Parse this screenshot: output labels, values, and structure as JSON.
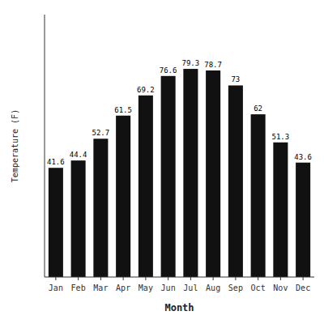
{
  "chart_data": {
    "type": "bar",
    "categories": [
      "Jan",
      "Feb",
      "Mar",
      "Apr",
      "May",
      "Jun",
      "Jul",
      "Aug",
      "Sep",
      "Oct",
      "Nov",
      "Dec"
    ],
    "values": [
      41.6,
      44.4,
      52.7,
      61.5,
      69.2,
      76.6,
      79.3,
      78.7,
      73.0,
      62.0,
      51.3,
      43.6
    ],
    "color": "#111111",
    "xlabel": "Month",
    "ylabel": "Temperature (F)",
    "ylim": [
      0,
      100
    ],
    "yticks": [],
    "data_labels": true,
    "tick_labels": "x"
  }
}
